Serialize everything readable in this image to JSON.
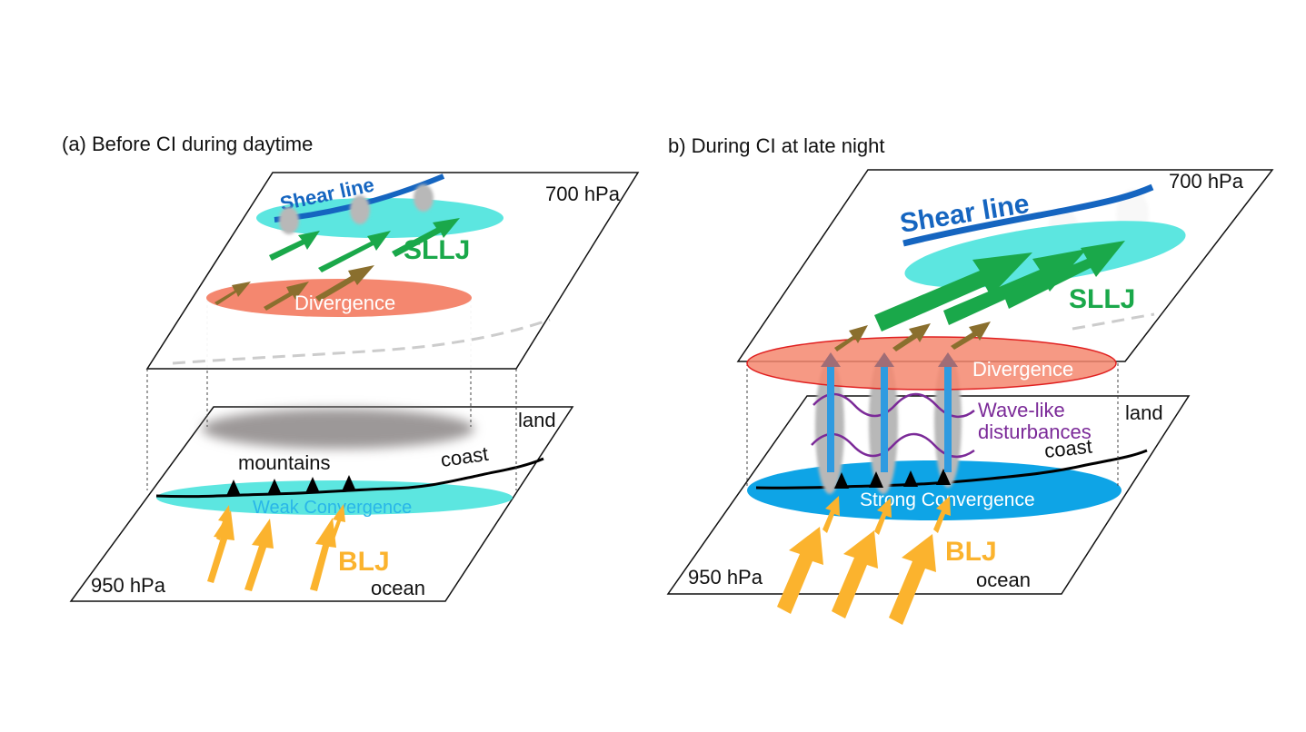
{
  "panel_a": {
    "caption": "(a) Before CI during daytime",
    "upper_level": "700 hPa",
    "lower_level": "950 hPa",
    "shear_line": "Shear line",
    "sllj": "SLLJ",
    "divergence": "Divergence",
    "land": "land",
    "coast": "coast",
    "mountains": "mountains",
    "convergence": "Weak Convergence",
    "blj": "BLJ",
    "ocean": "ocean"
  },
  "panel_b": {
    "caption": "b) During CI at late night",
    "upper_level": "700 hPa",
    "lower_level": "950 hPa",
    "shear_line": "Shear line",
    "sllj": "SLLJ",
    "divergence": "Divergence",
    "waves_line1": "Wave-like",
    "waves_line2": "disturbances",
    "land": "land",
    "coast": "coast",
    "convergence": "Strong Convergence",
    "blj": "BLJ",
    "ocean": "ocean"
  },
  "colors": {
    "shear_line": "#1565c0",
    "sllj": "#1aa84a",
    "blj": "#fbb32e",
    "divergence": "#f4876f",
    "weak_convergence": "#5ce6e0",
    "strong_convergence": "#0ea4e6",
    "waves": "#7b2a98",
    "cloud": "#b8b8b8"
  }
}
